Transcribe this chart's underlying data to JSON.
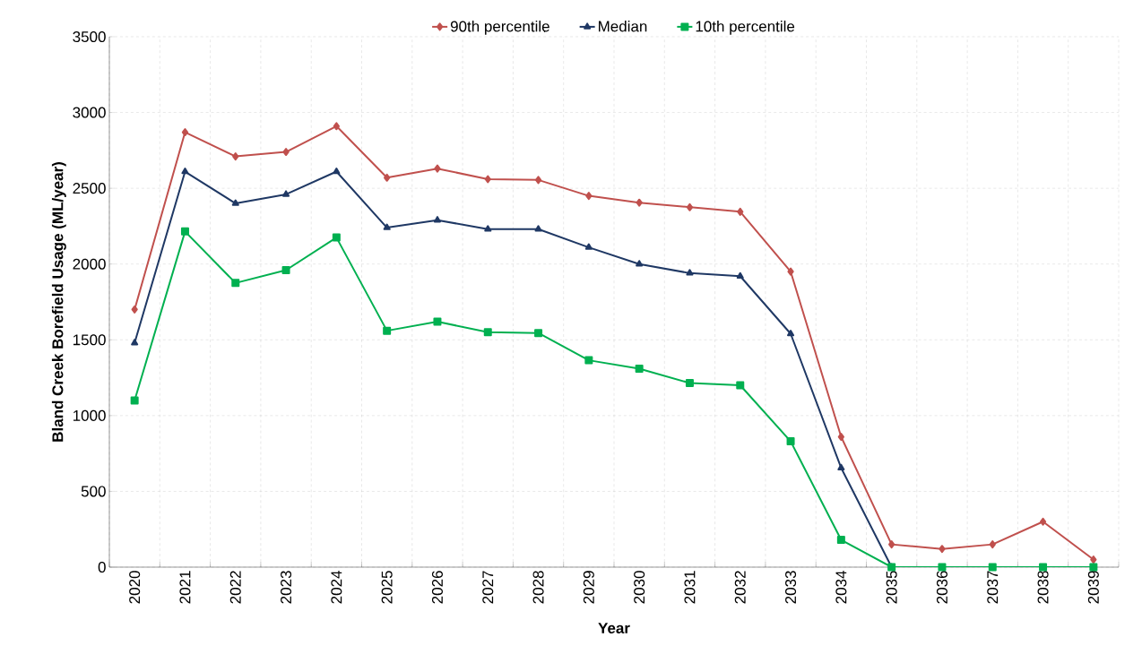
{
  "chart_data": {
    "type": "line",
    "xlabel": "Year",
    "ylabel": "Bland Creek Borefield Usage (ML/year)",
    "categories": [
      "2020",
      "2021",
      "2022",
      "2023",
      "2024",
      "2025",
      "2026",
      "2027",
      "2028",
      "2029",
      "2030",
      "2031",
      "2032",
      "2033",
      "2034",
      "2035",
      "2036",
      "2037",
      "2038",
      "2039"
    ],
    "series": [
      {
        "name": "90th percentile",
        "color": "#c0504d",
        "marker": "diamond",
        "values": [
          1700,
          2870,
          2710,
          2740,
          2910,
          2570,
          2630,
          2560,
          2555,
          2450,
          2405,
          2375,
          2345,
          1950,
          860,
          150,
          120,
          150,
          300,
          50
        ]
      },
      {
        "name": "Median",
        "color": "#1f3864",
        "marker": "triangle",
        "values": [
          1480,
          2610,
          2400,
          2460,
          2610,
          2240,
          2290,
          2230,
          2230,
          2110,
          2000,
          1940,
          1920,
          1540,
          655,
          0,
          null,
          null,
          null,
          null
        ]
      },
      {
        "name": "10th percentile",
        "color": "#00b050",
        "marker": "square",
        "values": [
          1100,
          2215,
          1875,
          1960,
          2175,
          1560,
          1620,
          1550,
          1545,
          1365,
          1310,
          1215,
          1200,
          830,
          180,
          0,
          0,
          0,
          0,
          0
        ]
      }
    ],
    "ylim": [
      0,
      3500
    ],
    "yticks": [
      0,
      500,
      1000,
      1500,
      2000,
      2500,
      3000,
      3500
    ],
    "grid": true,
    "legend": "top",
    "line_style": "solid"
  }
}
